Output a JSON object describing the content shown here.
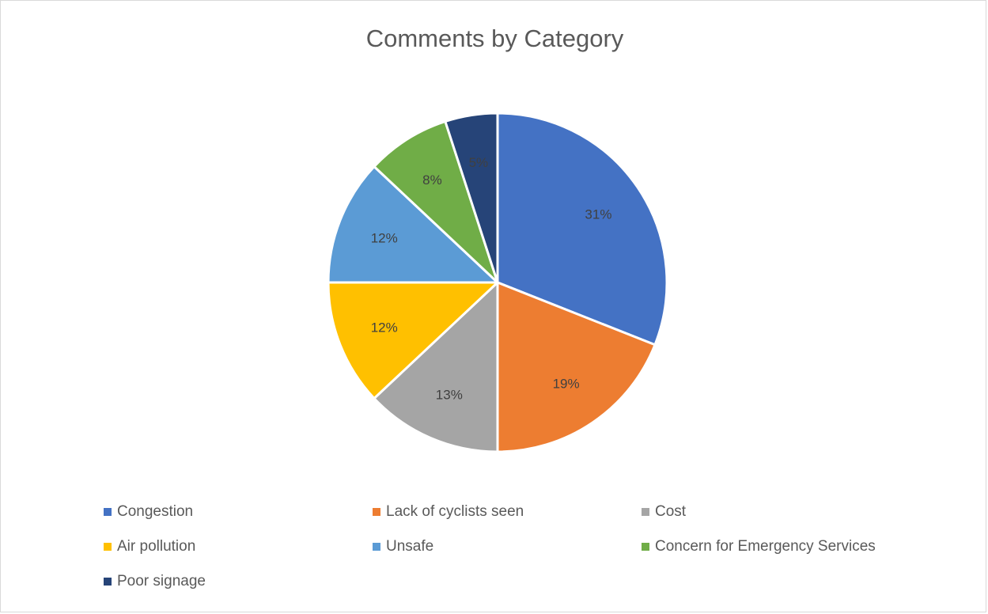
{
  "chart_data": {
    "type": "pie",
    "title": "Comments by Category",
    "categories": [
      "Congestion",
      "Lack of cyclists seen",
      "Cost",
      "Air pollution",
      "Unsafe",
      "Concern for Emergency Services",
      "Poor signage"
    ],
    "values": [
      31,
      19,
      13,
      12,
      12,
      8,
      5
    ],
    "labels": [
      "31%",
      "19%",
      "13%",
      "12%",
      "12%",
      "8%",
      "5%"
    ],
    "colors": [
      "#4472c4",
      "#ed7d31",
      "#a5a5a5",
      "#ffc000",
      "#5b9bd5",
      "#70ad47",
      "#264478"
    ],
    "legend_position": "bottom"
  }
}
